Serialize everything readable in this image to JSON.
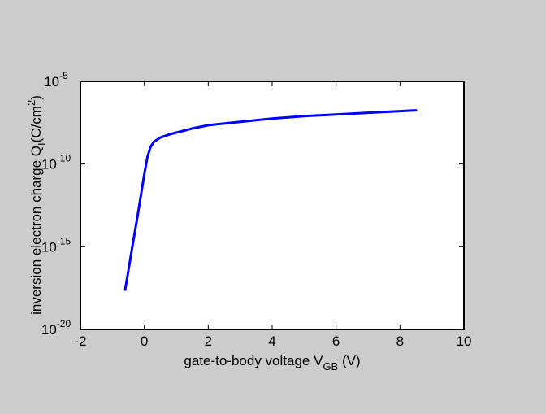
{
  "chart_data": {
    "type": "line",
    "xlabel": {
      "text": "gate-to-body voltage V",
      "sub": "GB",
      "suffix": " (V)"
    },
    "ylabel": {
      "text": "inversion electron charge Q",
      "sub": "I",
      "mid": "(C/cm",
      "sup": "2",
      "suffix": ")"
    },
    "xlim": [
      -2,
      10
    ],
    "ylim_log10": [
      -20,
      -5
    ],
    "yscale": "log",
    "xticks": [
      -2,
      0,
      2,
      4,
      6,
      8,
      10
    ],
    "yticks": [
      {
        "base": "10",
        "exp": "-20",
        "log10": -20
      },
      {
        "base": "10",
        "exp": "-15",
        "log10": -15
      },
      {
        "base": "10",
        "exp": "-10",
        "log10": -10
      },
      {
        "base": "10",
        "exp": "-5",
        "log10": -5
      }
    ],
    "grid": false,
    "series": [
      {
        "color": "#0000ff",
        "x": [
          -0.6,
          -0.4,
          -0.2,
          0.0,
          0.1,
          0.2,
          0.3,
          0.5,
          0.8,
          1.0,
          1.5,
          2.0,
          3.0,
          4.0,
          5.0,
          6.0,
          7.0,
          8.0,
          8.5
        ],
        "log10_y": [
          -17.6,
          -15.3,
          -13.0,
          -10.6,
          -9.55,
          -8.95,
          -8.65,
          -8.4,
          -8.2,
          -8.1,
          -7.85,
          -7.65,
          -7.45,
          -7.25,
          -7.1,
          -7.0,
          -6.9,
          -6.8,
          -6.75
        ]
      }
    ]
  }
}
